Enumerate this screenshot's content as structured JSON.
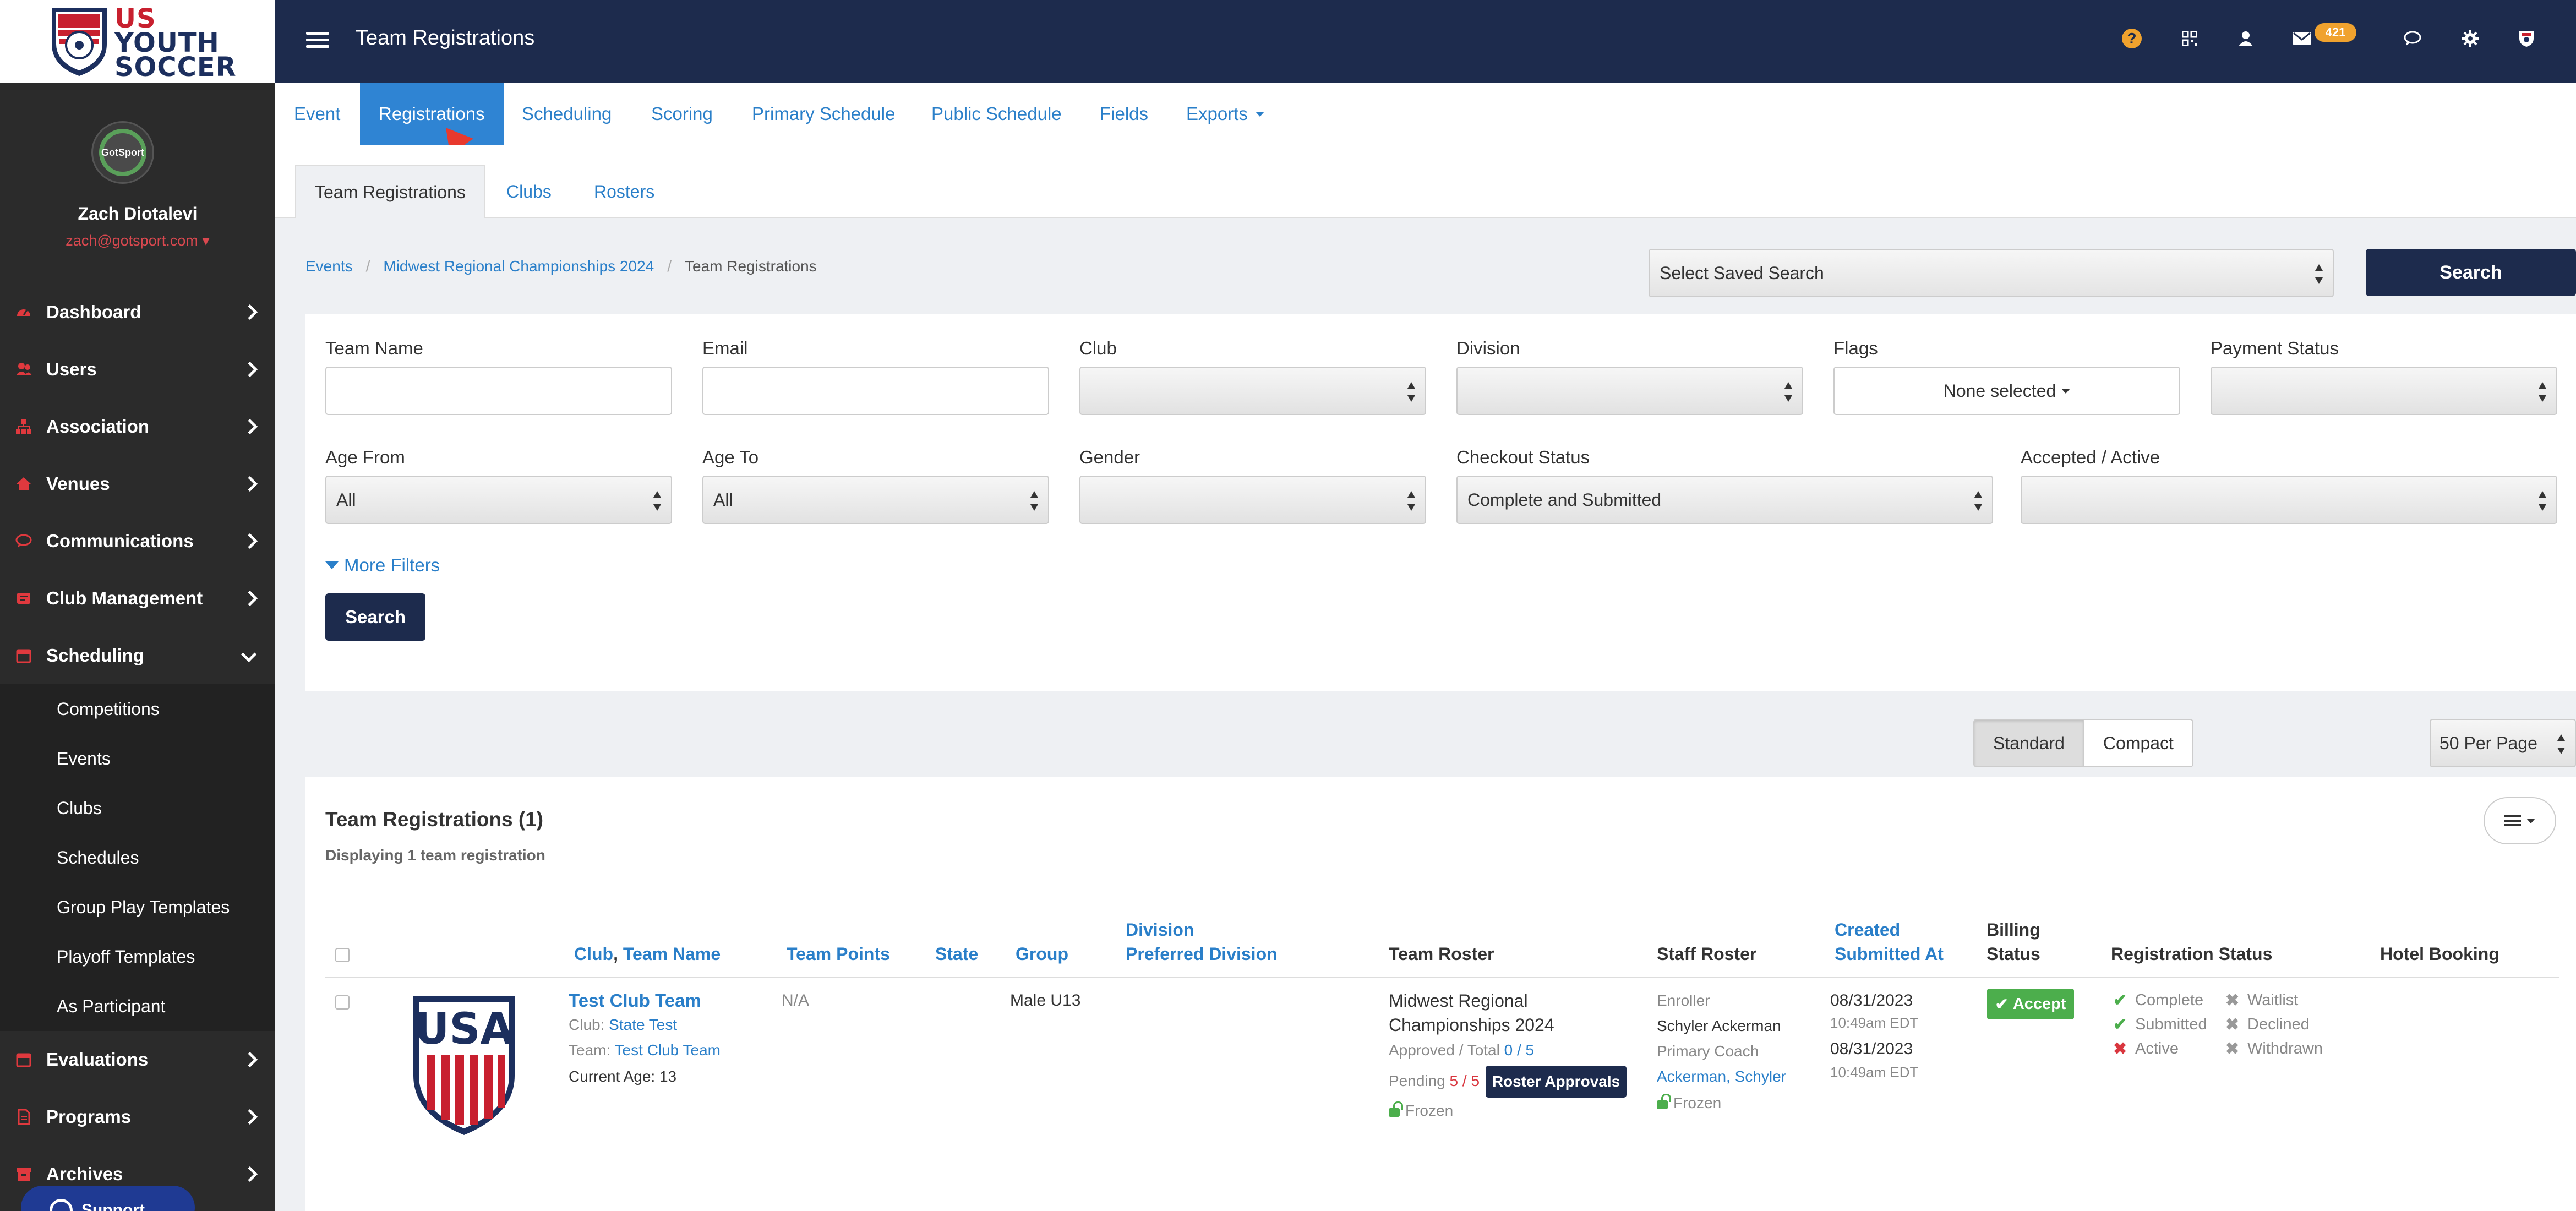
{
  "logo": {
    "line1": "US",
    "line2": "YOUTH",
    "line3": "SOCCER"
  },
  "profile": {
    "avatar_text": "GotSport",
    "name": "Zach Diotalevi",
    "email": "zach@gotsport.com"
  },
  "sidebar": {
    "items": [
      {
        "label": "Dashboard",
        "icon": "dashboard-icon"
      },
      {
        "label": "Users",
        "icon": "users-icon"
      },
      {
        "label": "Association",
        "icon": "sitemap-icon"
      },
      {
        "label": "Venues",
        "icon": "home-icon"
      },
      {
        "label": "Communications",
        "icon": "chat-icon"
      },
      {
        "label": "Club Management",
        "icon": "shield-icon"
      },
      {
        "label": "Scheduling",
        "icon": "calendar-icon"
      }
    ],
    "scheduling_sub": [
      "Competitions",
      "Events",
      "Clubs",
      "Schedules",
      "Group Play Templates",
      "Playoff Templates",
      "As Participant"
    ],
    "items_after": [
      {
        "label": "Evaluations",
        "icon": "calendar-icon"
      },
      {
        "label": "Programs",
        "icon": "document-icon"
      },
      {
        "label": "Archives",
        "icon": "archive-icon"
      }
    ]
  },
  "topbar": {
    "title": "Team Registrations",
    "badge_count": "421",
    "colors": {
      "bar": "#1d2b4d",
      "accent": "#f0a22e"
    }
  },
  "tabs": [
    "Event",
    "Registrations",
    "Scheduling",
    "Scoring",
    "Primary Schedule",
    "Public Schedule",
    "Fields",
    "Exports"
  ],
  "subtabs": [
    "Team Registrations",
    "Clubs",
    "Rosters"
  ],
  "breadcrumb": [
    "Events",
    "Midwest Regional Championships 2024",
    "Team Registrations"
  ],
  "saved_search": {
    "value": "Select Saved Search",
    "button": "Search"
  },
  "filters": {
    "team_name": {
      "label": "Team Name",
      "value": ""
    },
    "email": {
      "label": "Email",
      "value": ""
    },
    "club": {
      "label": "Club",
      "value": ""
    },
    "division": {
      "label": "Division",
      "value": ""
    },
    "flags": {
      "label": "Flags",
      "value": "None selected"
    },
    "payment_status": {
      "label": "Payment Status",
      "value": ""
    },
    "age_from": {
      "label": "Age From",
      "value": "All"
    },
    "age_to": {
      "label": "Age To",
      "value": "All"
    },
    "gender": {
      "label": "Gender",
      "value": ""
    },
    "checkout_status": {
      "label": "Checkout Status",
      "value": "Complete and Submitted"
    },
    "accepted_active": {
      "label": "Accepted / Active",
      "value": ""
    },
    "more_filters": "More Filters",
    "search_button": "Search"
  },
  "view": {
    "standard": "Standard",
    "compact": "Compact",
    "per_page": "50 Per Page"
  },
  "results": {
    "title": "Team Registrations (1)",
    "subtitle": "Displaying 1 team registration",
    "headers": {
      "club": "Club",
      "comma": ",",
      "team_name": "Team Name",
      "team_points": "Team Points",
      "state": "State",
      "group": "Group",
      "division": "Division",
      "preferred_division": "Preferred Division",
      "team_roster": "Team Roster",
      "staff_roster": "Staff Roster",
      "created": "Created",
      "submitted_at": "Submitted At",
      "billing": "Billing",
      "billing_status": "Status",
      "registration_status": "Registration Status",
      "hotel_booking": "Hotel Booking"
    },
    "rows": [
      {
        "team": "Test Club Team",
        "club_prefix": "Club:",
        "club": "State Test",
        "team_prefix": "Team:",
        "team_link": "Test Club Team",
        "current_age": "Current Age: 13",
        "points": "N/A",
        "group": "Male U13",
        "roster_event_l1": "Midwest Regional",
        "roster_event_l2": "Championships 2024",
        "approved_label": "Approved / Total",
        "approved": "0",
        "approved_sep": "/",
        "total": "5",
        "pending_label": "Pending",
        "pending_a": "5",
        "pending_sep": "/",
        "pending_b": "5",
        "roster_button": "Roster Approvals",
        "frozen": "Frozen",
        "staff_enroller_label": "Enroller",
        "staff_enroller": "Schyler Ackerman",
        "staff_coach_label": "Primary Coach",
        "staff_coach": "Ackerman, Schyler",
        "staff_frozen": "Frozen",
        "created_date": "08/31/2023",
        "created_time": "10:49am EDT",
        "submitted_date": "08/31/2023",
        "submitted_time": "10:49am EDT",
        "billing": "Accept",
        "status": {
          "complete": "Complete",
          "submitted": "Submitted",
          "active": "Active",
          "waitlist": "Waitlist",
          "declined": "Declined",
          "withdrawn": "Withdrawn"
        }
      }
    ]
  },
  "chat": {
    "label": "Support"
  }
}
